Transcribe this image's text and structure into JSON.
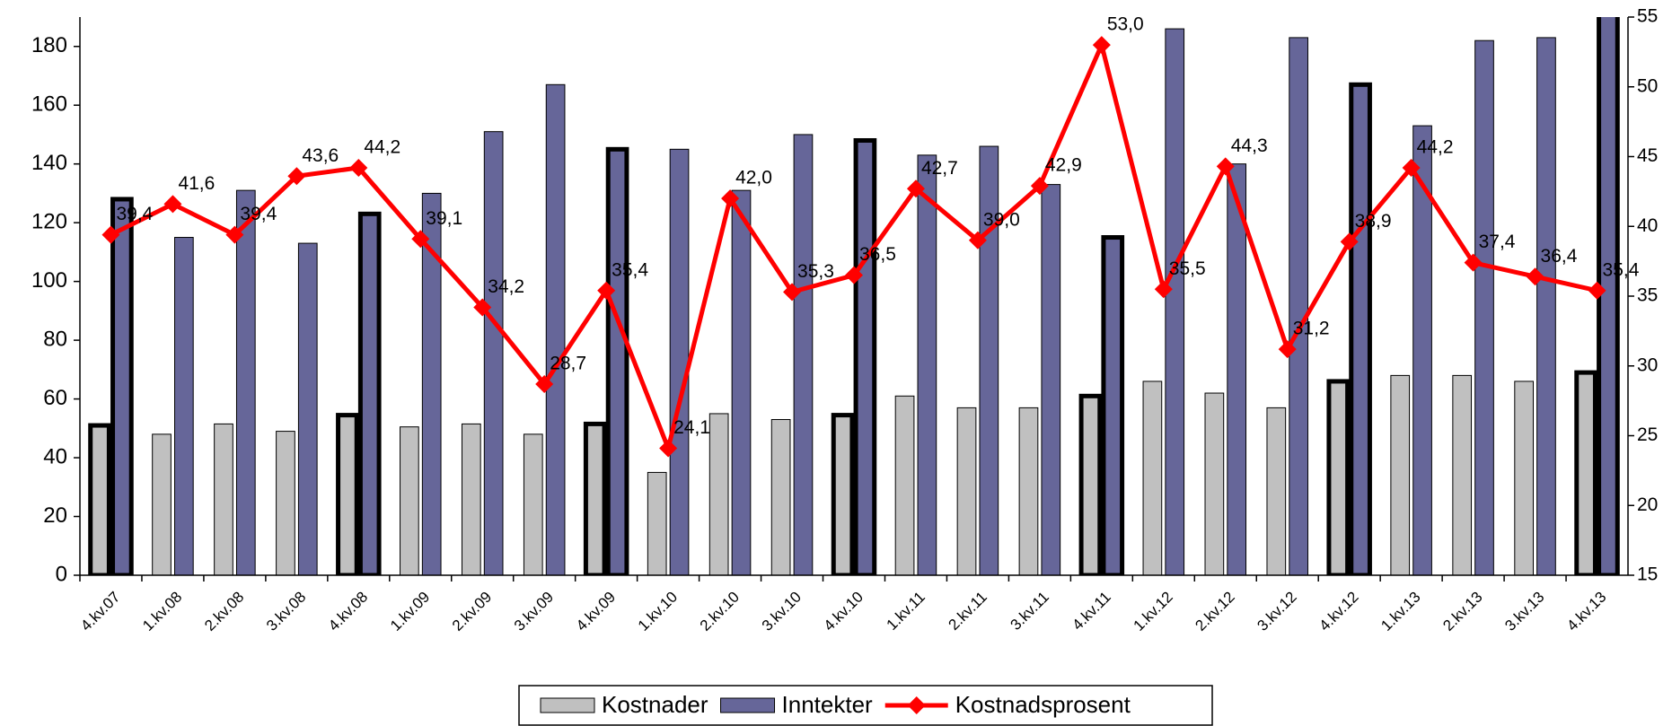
{
  "chart_data": {
    "type": "bar_line",
    "categories": [
      "4.kv.07",
      "1.kv.08",
      "2.kv.08",
      "3.kv.08",
      "4.kv.08",
      "1.kv.09",
      "2.kv.09",
      "3.kv.09",
      "4.kv.09",
      "1.kv.10",
      "2.kv.10",
      "3.kv.10",
      "4.kv.10",
      "1.kv.11",
      "2.kv.11",
      "3.kv.11",
      "4.kv.11",
      "1.kv.12",
      "2.kv.12",
      "3.kv.12",
      "4.kv.12",
      "1.kv.13",
      "2.kv.13",
      "3.kv.13",
      "4.kv.13"
    ],
    "series": [
      {
        "name": "Kostnader",
        "color": "#c0c0c0",
        "type": "bar",
        "values": [
          51,
          48,
          51.5,
          49,
          54.5,
          50.5,
          51.5,
          48,
          51.5,
          35,
          55,
          53,
          54.5,
          61,
          57,
          57,
          61,
          66,
          62,
          57,
          66,
          68,
          68,
          66,
          69
        ]
      },
      {
        "name": "Inntekter",
        "color": "#666699",
        "type": "bar",
        "values": [
          128,
          115,
          131,
          113,
          123,
          130,
          151,
          167,
          145,
          145,
          131,
          150,
          148,
          143,
          146,
          133,
          115,
          186,
          140,
          183,
          167,
          153,
          182,
          183,
          200
        ]
      },
      {
        "name": "Kostnadsprosent",
        "color": "#ff0000",
        "type": "line",
        "axis": "y2",
        "values": [
          39.4,
          41.6,
          39.4,
          43.6,
          44.2,
          39.1,
          34.2,
          28.7,
          35.4,
          24.1,
          42.0,
          35.3,
          36.5,
          42.7,
          39.0,
          42.9,
          53.0,
          35.5,
          44.3,
          31.2,
          38.9,
          44.2,
          37.4,
          36.4,
          35.4
        ],
        "value_labels": [
          "39,4",
          "41,6",
          "39,4",
          "43,6",
          "44,2",
          "39,1",
          "34,2",
          "28,7",
          "35,4",
          "24,1",
          "42,0",
          "35,3",
          "36,5",
          "42,7",
          "39,0",
          "42,9",
          "53,0",
          "35,5",
          "44,3",
          "31,2",
          "38,9",
          "44,2",
          "37,4",
          "36,4",
          "35,4"
        ]
      }
    ],
    "ylim": [
      0,
      190
    ],
    "yticks": [
      0,
      20,
      40,
      60,
      80,
      100,
      120,
      140,
      160,
      180
    ],
    "y2lim": [
      15,
      55
    ],
    "y2ticks": [
      15,
      20,
      25,
      30,
      35,
      40,
      45,
      50,
      55
    ],
    "legend": "bottom"
  }
}
